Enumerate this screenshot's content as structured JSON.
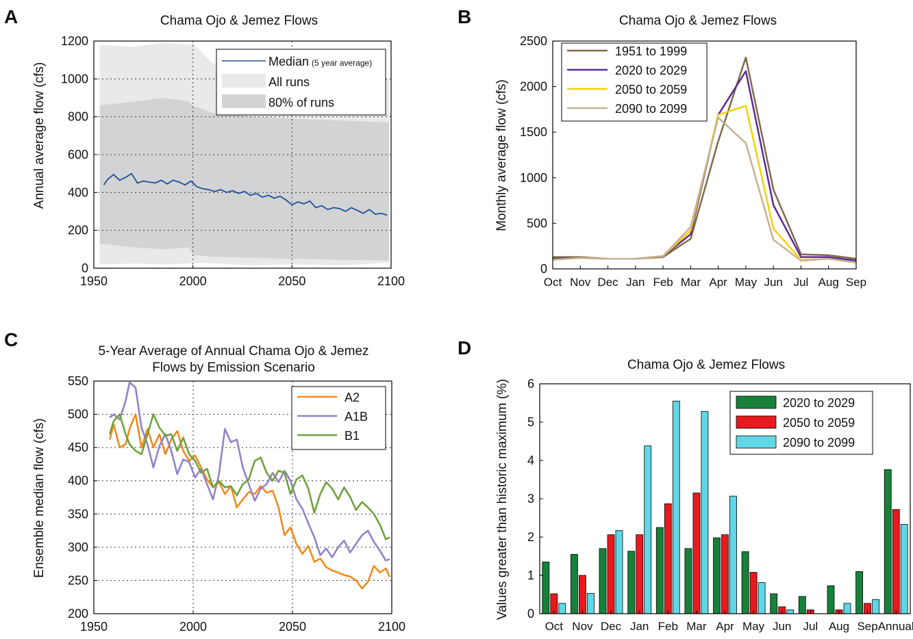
{
  "panels": [
    {
      "label": "A"
    },
    {
      "label": "B"
    },
    {
      "label": "C"
    },
    {
      "label": "D"
    }
  ],
  "chart_data": [
    {
      "type": "area",
      "title": "Chama Ojo & Jemez Flows",
      "xlabel": "",
      "ylabel": "Annual average flow (cfs)",
      "xlim": [
        1950,
        2100
      ],
      "ylim": [
        0,
        1200
      ],
      "xticks": [
        1950,
        2000,
        2050,
        2100
      ],
      "yticks": [
        0,
        200,
        400,
        600,
        800,
        1000,
        1200
      ],
      "grid": true,
      "legend_position": "top-right",
      "legend": [
        {
          "label": "Median",
          "sublabel": "(5 year average)",
          "kind": "line",
          "color": "#1f4e96"
        },
        {
          "label": "All runs",
          "kind": "patch",
          "color": "#e8e9ea"
        },
        {
          "label": "80% of runs",
          "kind": "patch",
          "color": "#d2d3d5"
        }
      ],
      "bands": {
        "all_runs": {
          "x": [
            1953,
            1970,
            1985,
            1998,
            2000,
            2010,
            2030,
            2050,
            2075,
            2099
          ],
          "low": [
            20,
            25,
            20,
            25,
            30,
            25,
            15,
            20,
            15,
            30
          ],
          "high": [
            1180,
            1170,
            1190,
            1180,
            1190,
            1080,
            1070,
            1030,
            1010,
            1000
          ]
        },
        "eighty_percent": {
          "x": [
            1953,
            1970,
            1985,
            1998,
            2000,
            2010,
            2030,
            2050,
            2075,
            2099
          ],
          "low": [
            130,
            110,
            100,
            110,
            70,
            60,
            55,
            50,
            45,
            40
          ],
          "high": [
            860,
            880,
            900,
            880,
            860,
            820,
            800,
            790,
            780,
            770
          ]
        }
      },
      "series": [
        {
          "name": "Median",
          "color": "#1f4e96",
          "x": [
            1955,
            1957,
            1960,
            1963,
            1966,
            1969,
            1972,
            1975,
            1978,
            1981,
            1984,
            1987,
            1990,
            1993,
            1996,
            1999,
            2002,
            2005,
            2008,
            2011,
            2014,
            2017,
            2020,
            2023,
            2026,
            2029,
            2032,
            2035,
            2038,
            2041,
            2044,
            2047,
            2050,
            2053,
            2056,
            2059,
            2062,
            2065,
            2068,
            2071,
            2074,
            2077,
            2080,
            2083,
            2086,
            2089,
            2092,
            2095,
            2098
          ],
          "y": [
            440,
            470,
            495,
            465,
            480,
            500,
            450,
            460,
            455,
            450,
            465,
            445,
            465,
            455,
            440,
            460,
            430,
            420,
            415,
            405,
            415,
            400,
            410,
            395,
            405,
            385,
            395,
            375,
            385,
            370,
            380,
            360,
            335,
            350,
            340,
            355,
            320,
            330,
            310,
            320,
            315,
            300,
            320,
            305,
            290,
            310,
            285,
            290,
            280
          ]
        }
      ]
    },
    {
      "type": "line",
      "title": "Chama Ojo & Jemez Flows",
      "xlabel": "",
      "ylabel": "Monthly average flow (cfs)",
      "categories": [
        "Oct",
        "Nov",
        "Dec",
        "Jan",
        "Feb",
        "Mar",
        "Apr",
        "May",
        "Jun",
        "Jul",
        "Aug",
        "Sep"
      ],
      "ylim": [
        0,
        2500
      ],
      "yticks": [
        0,
        500,
        1000,
        1500,
        2000,
        2500
      ],
      "grid": false,
      "legend_position": "top-left",
      "series": [
        {
          "name": "1951 to 1999",
          "color": "#7f6a47",
          "values": [
            130,
            130,
            110,
            110,
            130,
            330,
            1400,
            2320,
            870,
            160,
            150,
            110
          ]
        },
        {
          "name": "2020 to 2029",
          "color": "#5b2a96",
          "values": [
            110,
            120,
            110,
            110,
            140,
            380,
            1690,
            2170,
            700,
            130,
            130,
            90
          ]
        },
        {
          "name": "2050 to 2059",
          "color": "#f5d000",
          "values": [
            100,
            120,
            110,
            110,
            140,
            420,
            1690,
            1790,
            440,
            100,
            110,
            70
          ]
        },
        {
          "name": "2090 to 2099",
          "color": "#c7b191",
          "values": [
            100,
            120,
            110,
            110,
            140,
            460,
            1660,
            1380,
            320,
            90,
            110,
            70
          ]
        }
      ]
    },
    {
      "type": "line",
      "title": "5-Year Average of Annual Chama Ojo & Jemez",
      "subtitle": "Flows by Emission Scenario",
      "xlabel": "",
      "ylabel": "Ensemble median flow (cfs)",
      "xlim": [
        1950,
        2100
      ],
      "ylim": [
        200,
        550
      ],
      "xticks": [
        1950,
        2000,
        2050,
        2100
      ],
      "yticks": [
        200,
        250,
        300,
        350,
        400,
        450,
        500,
        550
      ],
      "grid": true,
      "legend_position": "top-right",
      "series": [
        {
          "name": "A2",
          "color": "#f28a1c",
          "x": [
            1958,
            1960,
            1963,
            1966,
            1968,
            1971,
            1974,
            1977,
            1980,
            1983,
            1986,
            1989,
            1992,
            1995,
            1998,
            2001,
            2004,
            2007,
            2010,
            2013,
            2016,
            2019,
            2022,
            2025,
            2028,
            2031,
            2034,
            2037,
            2040,
            2043,
            2046,
            2049,
            2052,
            2055,
            2058,
            2061,
            2064,
            2067,
            2070,
            2073,
            2076,
            2079,
            2082,
            2085,
            2088,
            2091,
            2094,
            2097,
            2099
          ],
          "y": [
            462,
            485,
            450,
            455,
            478,
            500,
            450,
            478,
            450,
            470,
            440,
            462,
            475,
            445,
            430,
            438,
            420,
            402,
            390,
            398,
            380,
            392,
            360,
            372,
            383,
            380,
            392,
            382,
            385,
            360,
            318,
            330,
            305,
            290,
            302,
            278,
            283,
            270,
            265,
            262,
            258,
            256,
            250,
            238,
            248,
            272,
            262,
            268,
            255
          ]
        },
        {
          "name": "A1B",
          "color": "#9381c9",
          "x": [
            1958,
            1960,
            1963,
            1966,
            1968,
            1971,
            1974,
            1977,
            1980,
            1983,
            1986,
            1989,
            1992,
            1995,
            1998,
            2001,
            2004,
            2007,
            2010,
            2013,
            2016,
            2019,
            2022,
            2025,
            2028,
            2031,
            2034,
            2037,
            2040,
            2043,
            2046,
            2049,
            2052,
            2055,
            2058,
            2061,
            2064,
            2067,
            2070,
            2073,
            2076,
            2079,
            2082,
            2085,
            2088,
            2091,
            2094,
            2097,
            2099
          ],
          "y": [
            495,
            500,
            492,
            520,
            548,
            540,
            480,
            455,
            420,
            452,
            470,
            445,
            410,
            432,
            428,
            405,
            418,
            395,
            372,
            410,
            478,
            458,
            462,
            420,
            395,
            370,
            388,
            395,
            412,
            398,
            415,
            400,
            372,
            358,
            336,
            315,
            288,
            298,
            285,
            300,
            310,
            292,
            305,
            318,
            325,
            308,
            295,
            280,
            282
          ]
        },
        {
          "name": "B1",
          "color": "#6ea13b",
          "x": [
            1958,
            1960,
            1963,
            1966,
            1968,
            1971,
            1974,
            1977,
            1980,
            1983,
            1986,
            1989,
            1992,
            1995,
            1998,
            2001,
            2004,
            2007,
            2010,
            2013,
            2016,
            2019,
            2022,
            2025,
            2028,
            2031,
            2034,
            2037,
            2040,
            2043,
            2046,
            2049,
            2052,
            2055,
            2058,
            2061,
            2064,
            2067,
            2070,
            2073,
            2076,
            2079,
            2082,
            2085,
            2088,
            2091,
            2094,
            2097,
            2099
          ],
          "y": [
            470,
            490,
            500,
            470,
            455,
            445,
            440,
            470,
            500,
            480,
            468,
            470,
            445,
            465,
            440,
            430,
            412,
            418,
            390,
            400,
            390,
            392,
            378,
            395,
            402,
            430,
            435,
            412,
            400,
            415,
            412,
            380,
            402,
            408,
            388,
            352,
            380,
            398,
            388,
            372,
            390,
            376,
            356,
            368,
            360,
            350,
            334,
            312,
            315
          ]
        }
      ]
    },
    {
      "type": "bar",
      "title": "Chama Ojo & Jemez Flows",
      "xlabel": "",
      "ylabel": "Values greater than historic maximum (%)",
      "categories": [
        "Oct",
        "Nov",
        "Dec",
        "Jan",
        "Feb",
        "Mar",
        "Apr",
        "May",
        "Jun",
        "Jul",
        "Aug",
        "Sep",
        "Annual"
      ],
      "ylim": [
        0,
        6
      ],
      "yticks": [
        0,
        1,
        2,
        3,
        4,
        5,
        6
      ],
      "grid": false,
      "legend_position": "top-right",
      "series": [
        {
          "name": "2020 to 2029",
          "color": "#17813a",
          "values": [
            1.35,
            1.55,
            1.7,
            1.63,
            2.25,
            1.7,
            1.98,
            1.62,
            0.52,
            0.45,
            0.73,
            1.1,
            3.76
          ]
        },
        {
          "name": "2050 to 2059",
          "color": "#e8191f",
          "values": [
            0.52,
            1.0,
            2.06,
            2.06,
            2.87,
            3.15,
            2.06,
            1.08,
            0.18,
            0.1,
            0.1,
            0.27,
            2.72
          ]
        },
        {
          "name": "2090 to 2099",
          "color": "#5fd7e6",
          "values": [
            0.27,
            0.53,
            2.17,
            4.38,
            5.55,
            5.28,
            3.07,
            0.81,
            0.1,
            0.0,
            0.27,
            0.37,
            2.33
          ]
        }
      ]
    }
  ]
}
